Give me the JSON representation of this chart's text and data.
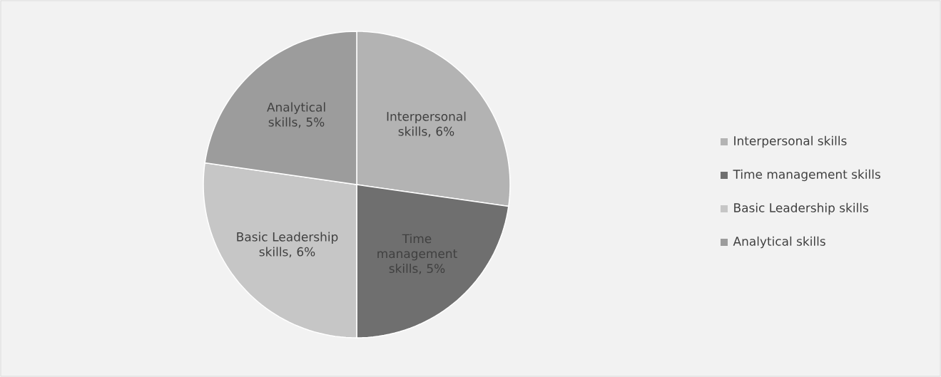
{
  "chart_data": {
    "type": "pie",
    "categories": [
      "Interpersonal skills",
      "Time management skills",
      "Basic Leadership skills",
      "Analytical skills"
    ],
    "values": [
      6,
      5,
      6,
      5
    ],
    "colors": [
      "#b3b3b3",
      "#6f6f6f",
      "#c6c6c6",
      "#9c9c9c"
    ],
    "value_labels": [
      "Interpersonal skills, 6%",
      "Time management skills, 5%",
      "Basic Leadership skills, 6%",
      "Analytical skills, 5%"
    ],
    "legend": "right"
  }
}
